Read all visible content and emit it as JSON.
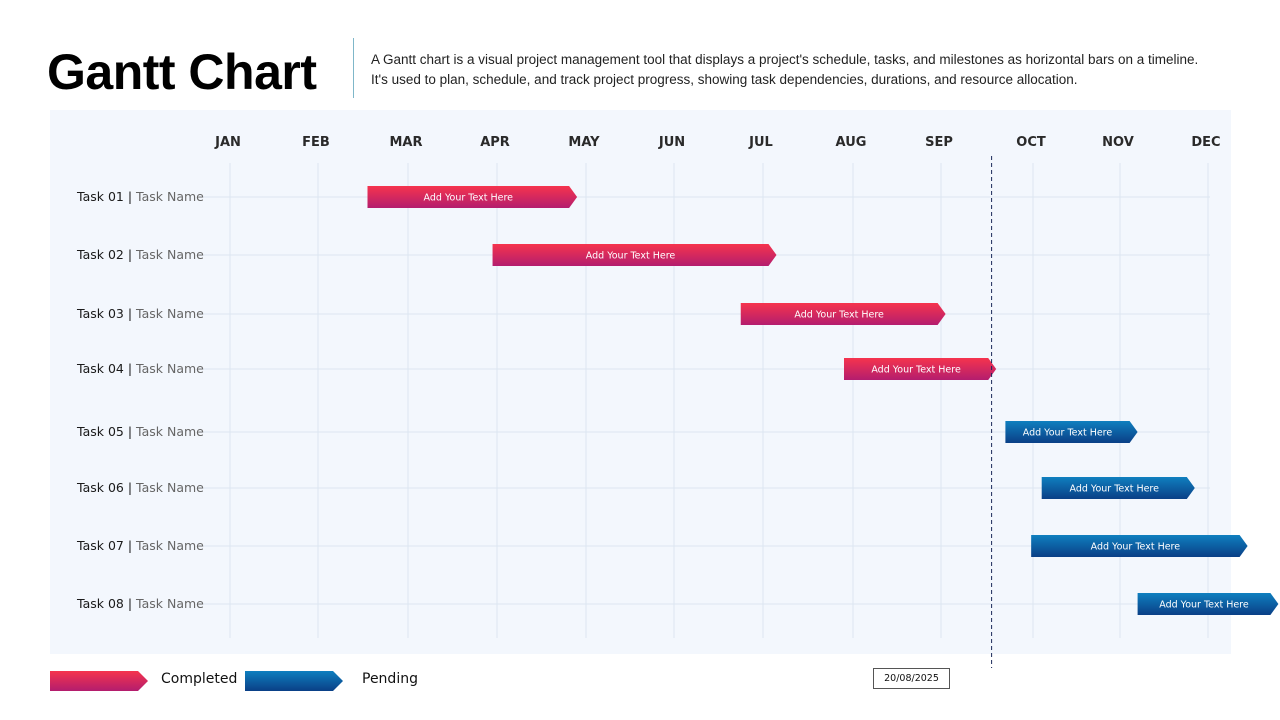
{
  "header": {
    "title": "Gantt Chart",
    "description": "A Gantt chart is a visual project management tool that displays a project's schedule, tasks, and milestones as horizontal bars on a timeline. It's used to plan, schedule, and track project progress, showing task dependencies, durations, and resource allocation."
  },
  "legend": {
    "completed": "Completed",
    "pending": "Pending"
  },
  "today": {
    "label": "20/08/2025",
    "position_month": 8.55
  },
  "colors": {
    "completed_top": "#f5344d",
    "completed_bottom": "#b31d6e",
    "pending_top": "#0f7fbf",
    "pending_bottom": "#0a3f86",
    "panel": "#f3f7fd",
    "grid": "#dde5f1"
  },
  "chart_data": {
    "type": "gantt",
    "months": [
      "JAN",
      "FEB",
      "MAR",
      "APR",
      "MAY",
      "JUN",
      "JUL",
      "AUG",
      "SEP",
      "OCT",
      "NOV",
      "DEC"
    ],
    "tasks": [
      {
        "id": "Task 01",
        "name": "Task Name",
        "start": 1.55,
        "end": 3.9,
        "status": "completed",
        "text": "Add Your Text Here"
      },
      {
        "id": "Task 02",
        "name": "Task Name",
        "start": 2.95,
        "end": 6.15,
        "status": "completed",
        "text": "Add Your Text Here"
      },
      {
        "id": "Task 03",
        "name": "Task Name",
        "start": 5.75,
        "end": 8.05,
        "status": "completed",
        "text": "Add Your Text Here"
      },
      {
        "id": "Task 04",
        "name": "Task Name",
        "start": 6.9,
        "end": 8.6,
        "status": "completed",
        "text": "Add Your Text Here"
      },
      {
        "id": "Task 05",
        "name": "Task Name",
        "start": 8.7,
        "end": 10.2,
        "status": "pending",
        "text": "Add Your Text Here"
      },
      {
        "id": "Task 06",
        "name": "Task Name",
        "start": 9.1,
        "end": 10.85,
        "status": "pending",
        "text": "Add Your Text Here"
      },
      {
        "id": "Task 07",
        "name": "Task Name",
        "start": 8.98,
        "end": 11.45,
        "status": "pending",
        "text": "Add Your Text Here"
      },
      {
        "id": "Task 08",
        "name": "Task Name",
        "start": 10.2,
        "end": 11.8,
        "status": "pending",
        "text": "Add Your Text Here"
      }
    ]
  }
}
